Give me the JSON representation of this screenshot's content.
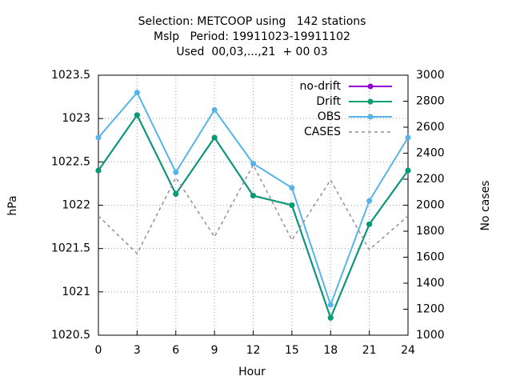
{
  "chart_data": {
    "type": "line",
    "title": [
      "Selection: METCOOP using   142 stations",
      "Mslp   Period: 19911023-19911102",
      "Used  00,03,...,21  + 00 03"
    ],
    "x_label": "Hour",
    "y_label": "hPa",
    "y2_label": "No cases",
    "x": [
      0,
      3,
      6,
      9,
      12,
      15,
      18,
      21,
      24
    ],
    "xlim": [
      0,
      24
    ],
    "xticks": [
      0,
      3,
      6,
      9,
      12,
      15,
      18,
      21,
      24
    ],
    "ylim": [
      1020.5,
      1023.5
    ],
    "yticks": [
      1020.5,
      1021,
      1021.5,
      1022,
      1022.5,
      1023,
      1023.5
    ],
    "y2lim": [
      1000,
      3000
    ],
    "y2ticks": [
      1000,
      1200,
      1400,
      1600,
      1800,
      2000,
      2200,
      2400,
      2600,
      2800,
      3000
    ],
    "grid": true,
    "legend": "top-right",
    "series": [
      {
        "name": "no-drift",
        "color": "#9400d3",
        "marker": true,
        "dash": false,
        "values": [
          1022.4,
          1023.04,
          1022.13,
          1022.78,
          1022.11,
          1022.0,
          1020.7,
          1021.78,
          1022.4
        ]
      },
      {
        "name": "Drift",
        "color": "#009e73",
        "marker": true,
        "dash": false,
        "values": [
          1022.4,
          1023.04,
          1022.13,
          1022.78,
          1022.11,
          1022.0,
          1020.7,
          1021.78,
          1022.4
        ]
      },
      {
        "name": "OBS",
        "color": "#56b4e9",
        "marker": true,
        "dash": false,
        "values": [
          1022.78,
          1023.3,
          1022.38,
          1023.1,
          1022.48,
          1022.2,
          1020.85,
          1022.05,
          1022.78
        ]
      },
      {
        "name": "CASES",
        "color": "#909090",
        "marker": false,
        "dash": true,
        "axis": "y2",
        "values": [
          1917,
          1628,
          2212,
          1757,
          2311,
          1732,
          2194,
          1658,
          1917
        ]
      }
    ]
  }
}
